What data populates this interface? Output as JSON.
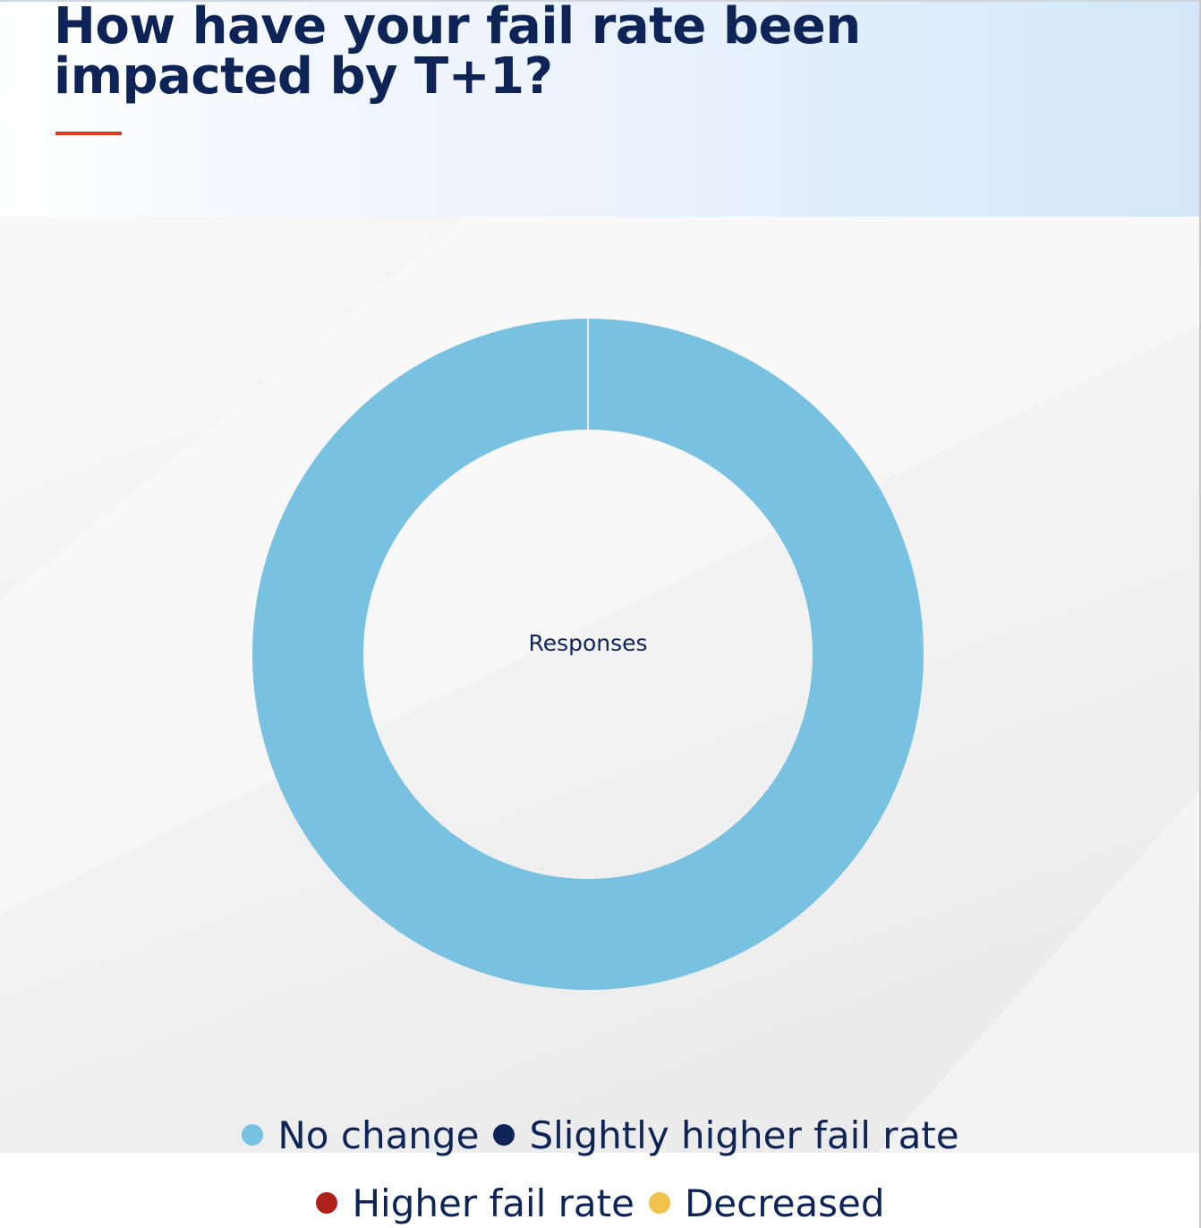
{
  "title": "How have your fail rate been impacted by T+1?",
  "chart_data": {
    "type": "pie",
    "style": "donut",
    "center_label": "Responses",
    "categories": [
      "No change",
      "Slightly higher fail rate",
      "Higher fail rate",
      "Decreased"
    ],
    "values": [
      100,
      0,
      0,
      0
    ],
    "unit": "%",
    "colors": [
      "#79c1e1",
      "#0e2457",
      "#b0201b",
      "#efc24a"
    ],
    "legend_position": "bottom"
  },
  "colors": {
    "title": "#0e2457",
    "accent_underline": "#e03a24"
  }
}
